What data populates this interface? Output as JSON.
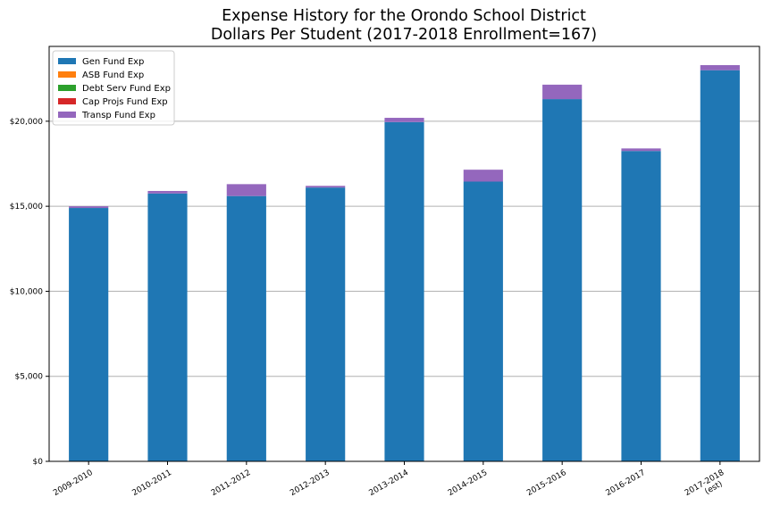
{
  "chart_data": {
    "type": "bar",
    "stacked": true,
    "title": "Expense History for the Orondo School District",
    "subtitle": "Dollars Per Student (2017-2018 Enrollment=167)",
    "xlabel": "",
    "ylabel": "",
    "categories": [
      "2009-2010",
      "2010-2011",
      "2011-2012",
      "2012-2013",
      "2013-2014",
      "2014-2015",
      "2015-2016",
      "2016-2017",
      "2017-2018\n(est)"
    ],
    "series": [
      {
        "name": "Gen Fund Exp",
        "color": "#1f77b4",
        "values": [
          14900,
          15750,
          15600,
          16100,
          19950,
          16450,
          21300,
          18250,
          23000
        ]
      },
      {
        "name": "ASB Fund Exp",
        "color": "#ff7f0e",
        "values": [
          0,
          0,
          0,
          0,
          0,
          0,
          0,
          0,
          0
        ]
      },
      {
        "name": "Debt Serv Fund Exp",
        "color": "#2ca02c",
        "values": [
          0,
          0,
          0,
          0,
          0,
          0,
          0,
          0,
          0
        ]
      },
      {
        "name": "Cap Projs Fund Exp",
        "color": "#d62728",
        "values": [
          0,
          0,
          0,
          0,
          0,
          0,
          0,
          0,
          0
        ]
      },
      {
        "name": "Transp Fund Exp",
        "color": "#9467bd",
        "values": [
          100,
          150,
          700,
          100,
          250,
          700,
          850,
          150,
          300
        ]
      }
    ],
    "yticks": [
      0,
      5000,
      10000,
      15000,
      20000
    ],
    "ytick_labels": [
      "$0",
      "$5,000",
      "$10,000",
      "$15,000",
      "$20,000"
    ],
    "ylim": [
      0,
      24400
    ],
    "grid": "horizontal",
    "legend_position": "upper-left"
  }
}
